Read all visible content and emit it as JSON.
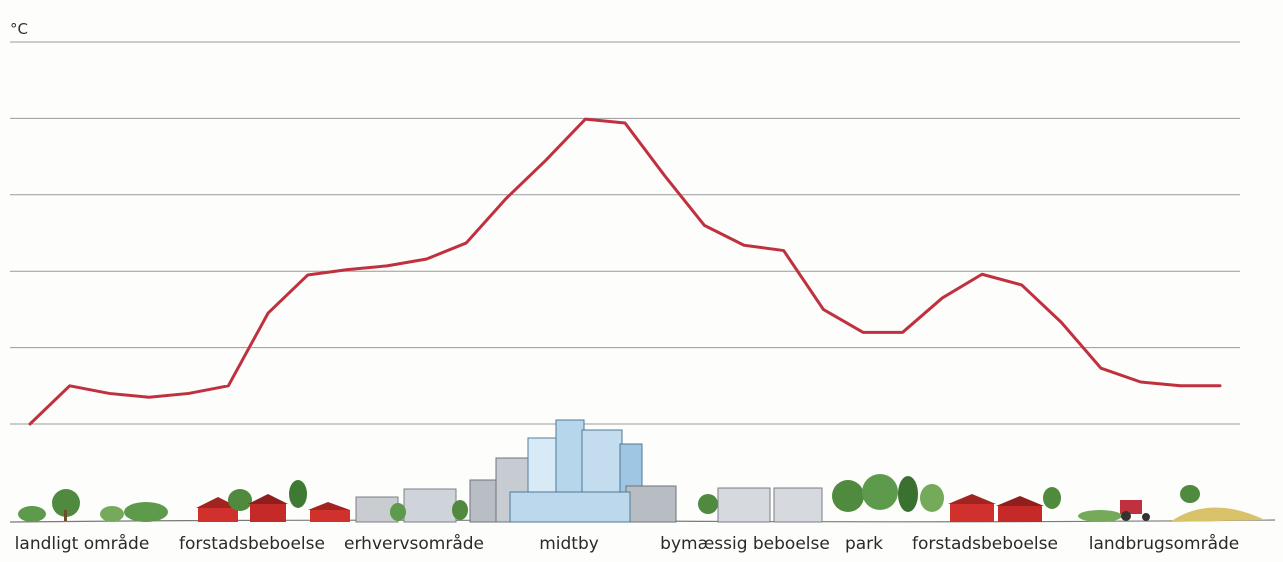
{
  "chart_data": {
    "type": "line",
    "ylabel": "°C",
    "categories": [
      "landligt område",
      "forstadsbeboelse",
      "erhvervsområde",
      "midtby",
      "bymæssig beboelse",
      "park",
      "forstadsbeboelse",
      "landbrugsområde"
    ],
    "x": [
      0,
      0.5,
      1,
      1.5,
      2,
      2.5,
      3,
      3.5,
      4,
      4.5,
      5,
      5.5,
      6,
      6.5,
      7,
      7.5,
      8,
      8.5,
      9,
      9.5,
      10,
      10.5,
      11,
      11.5,
      12,
      12.5,
      13,
      13.5,
      14,
      14.5,
      15
    ],
    "series": [
      {
        "values": [
          0.0,
          0.5,
          0.4,
          0.35,
          0.4,
          0.5,
          1.45,
          1.95,
          2.02,
          2.07,
          2.16,
          2.37,
          2.95,
          3.45,
          3.99,
          3.94,
          3.25,
          2.6,
          2.34,
          2.27,
          1.5,
          1.2,
          1.2,
          1.65,
          1.96,
          1.82,
          1.33,
          0.73,
          0.55,
          0.5,
          0.5
        ]
      }
    ],
    "ylim": [
      0,
      5
    ],
    "yticks": [
      0,
      1,
      2,
      3,
      4,
      5
    ],
    "grid": true,
    "line_color": "#c0313f"
  },
  "scene": {
    "illustration": "city-skyline-illustration"
  }
}
